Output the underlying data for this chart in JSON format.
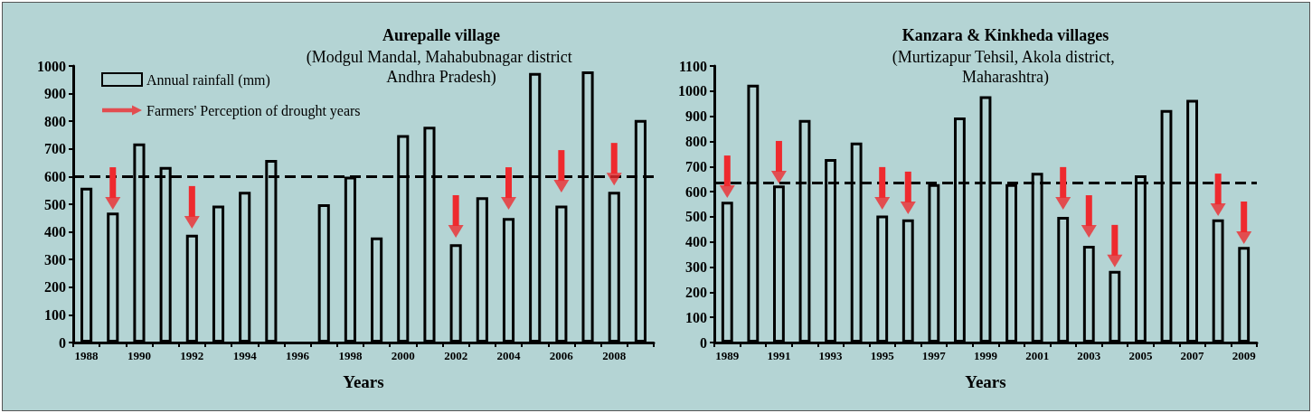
{
  "chart_data": [
    {
      "type": "bar",
      "title": "Aurepalle village",
      "subtitle": "(Modgul Mandal, Mahabubnagar district Andhra Pradesh)",
      "xlabel": "Years",
      "categories": [
        "1988",
        null,
        "1990",
        null,
        "1992",
        null,
        "1994",
        null,
        "1996",
        null,
        "1998",
        null,
        "2000",
        null,
        "2002",
        null,
        "2004",
        null,
        "2006",
        null,
        "2008",
        null
      ],
      "series": [
        {
          "name": "Annual rainfall (mm)",
          "type": "bar",
          "color": "#000000",
          "values": [
            560,
            470,
            720,
            635,
            390,
            495,
            545,
            660,
            null,
            500,
            600,
            380,
            750,
            780,
            355,
            525,
            450,
            975,
            495,
            980,
            545,
            805
          ]
        },
        {
          "name": "Farmers' Perception of drought years",
          "type": "scatter",
          "color": "#ee2a2e",
          "values": [
            null,
            503,
            null,
            null,
            435,
            null,
            null,
            null,
            null,
            null,
            null,
            null,
            null,
            null,
            402,
            null,
            503,
            null,
            565,
            null,
            591,
            null
          ]
        }
      ],
      "ylim": [
        0,
        1000
      ],
      "yticks": [
        0,
        100,
        200,
        300,
        400,
        500,
        600,
        700,
        800,
        900,
        1000
      ],
      "ref_lines": [
        {
          "axis": "y",
          "value": 600,
          "color": "#000000",
          "line_style": "dashed"
        }
      ],
      "grid": false,
      "legend": "top left"
    },
    {
      "type": "bar",
      "title": "Kanzara & Kinkheda villages",
      "subtitle": "(Murtizapur Tehsil, Akola district, Maharashtra)",
      "xlabel": "Years",
      "categories": [
        "1989",
        null,
        "1991",
        null,
        "1993",
        null,
        "1995",
        null,
        "1997",
        null,
        "1999",
        null,
        "2001",
        null,
        "2003",
        null,
        "2005",
        null,
        "2007",
        null,
        "2009"
      ],
      "series": [
        {
          "type": "bar",
          "color": "#000000",
          "values": [
            560,
            1025,
            625,
            885,
            730,
            795,
            505,
            490,
            630,
            895,
            980,
            630,
            675,
            500,
            385,
            285,
            665,
            925,
            965,
            490,
            380
          ]
        },
        {
          "type": "scatter",
          "color": "#ee2a2e",
          "values": [
            600,
            null,
            658,
            null,
            null,
            null,
            554,
            536,
            null,
            null,
            null,
            null,
            null,
            554,
            442,
            324,
            null,
            null,
            null,
            528,
            417
          ]
        }
      ],
      "ylim": [
        0,
        1100
      ],
      "yticks": [
        0,
        100,
        200,
        300,
        400,
        500,
        600,
        700,
        800,
        900,
        1000,
        1100
      ],
      "ref_lines": [
        {
          "axis": "y",
          "value": 635,
          "color": "#000000",
          "line_style": "dashed"
        }
      ],
      "grid": false,
      "legend": false
    }
  ]
}
